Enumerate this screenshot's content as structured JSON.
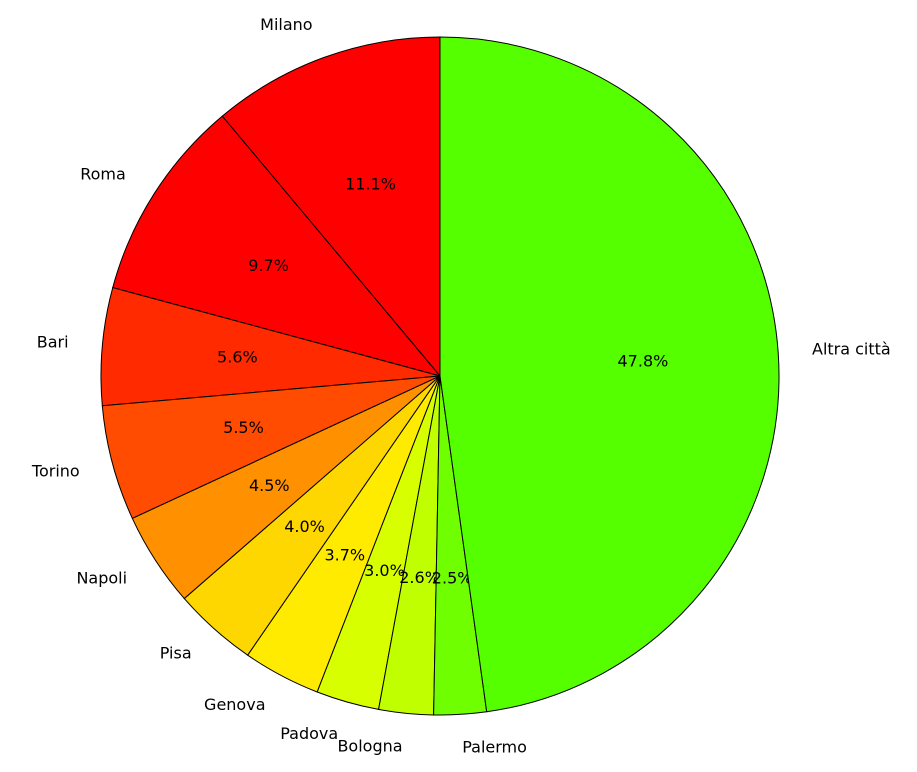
{
  "chart_data": {
    "type": "pie",
    "categories": [
      "Milano",
      "Roma",
      "Bari",
      "Torino",
      "Napoli",
      "Pisa",
      "Genova",
      "Padova",
      "Bologna",
      "Palermo",
      "Altra città"
    ],
    "values": [
      11.1,
      9.7,
      5.6,
      5.5,
      4.5,
      4.0,
      3.7,
      3.0,
      2.6,
      2.5,
      47.8
    ],
    "value_labels": [
      "11.1%",
      "9.7%",
      "5.6%",
      "5.5%",
      "4.5%",
      "4.0%",
      "3.7%",
      "3.0%",
      "2.6%",
      "2.5%",
      "47.8%"
    ],
    "colors": [
      "#ff0000",
      "#ff0000",
      "#ff2a00",
      "#ff4c00",
      "#ff9000",
      "#ffd700",
      "#ffeb00",
      "#d8ff00",
      "#c0ff00",
      "#70ff00",
      "#55ff00"
    ]
  }
}
